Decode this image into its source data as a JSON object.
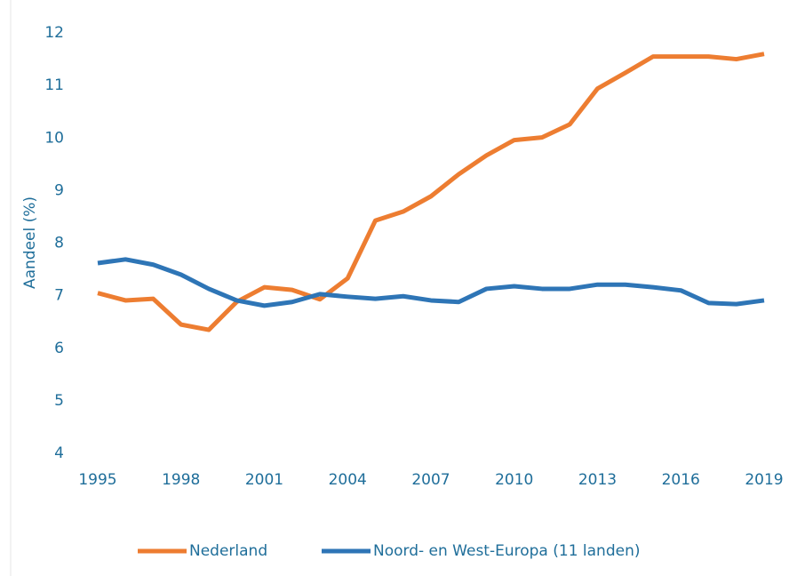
{
  "chart_data": {
    "type": "line",
    "y_label": "Aandeel (%)",
    "x": [
      1995,
      1996,
      1997,
      1998,
      1999,
      2000,
      2001,
      2002,
      2003,
      2004,
      2005,
      2006,
      2007,
      2008,
      2009,
      2010,
      2011,
      2012,
      2013,
      2014,
      2015,
      2016,
      2017,
      2018,
      2019
    ],
    "xlim": [
      1995,
      2019
    ],
    "xticks": [
      1995,
      1998,
      2001,
      2004,
      2007,
      2010,
      2013,
      2016,
      2019
    ],
    "ylim": [
      4,
      12
    ],
    "yticks": [
      4,
      5,
      6,
      7,
      8,
      9,
      10,
      11,
      12
    ],
    "grid": false,
    "legend": "bottom",
    "series": [
      {
        "name": "Nederland",
        "color": "#ed7d31",
        "values": [
          7.05,
          6.91,
          6.94,
          6.45,
          6.35,
          6.88,
          7.16,
          7.11,
          6.93,
          7.33,
          8.43,
          8.6,
          8.89,
          9.31,
          9.67,
          9.96,
          10.01,
          10.26,
          10.94,
          11.24,
          11.55,
          11.55,
          11.55,
          11.5,
          11.6
        ]
      },
      {
        "name": "Noord- en West-Europa (11 landen)",
        "color": "#2e75b6",
        "values": [
          7.62,
          7.69,
          7.59,
          7.4,
          7.13,
          6.91,
          6.81,
          6.88,
          7.03,
          6.98,
          6.94,
          6.99,
          6.91,
          6.88,
          7.13,
          7.18,
          7.13,
          7.13,
          7.21,
          7.21,
          7.16,
          7.1,
          6.86,
          6.84,
          6.91
        ]
      }
    ]
  }
}
